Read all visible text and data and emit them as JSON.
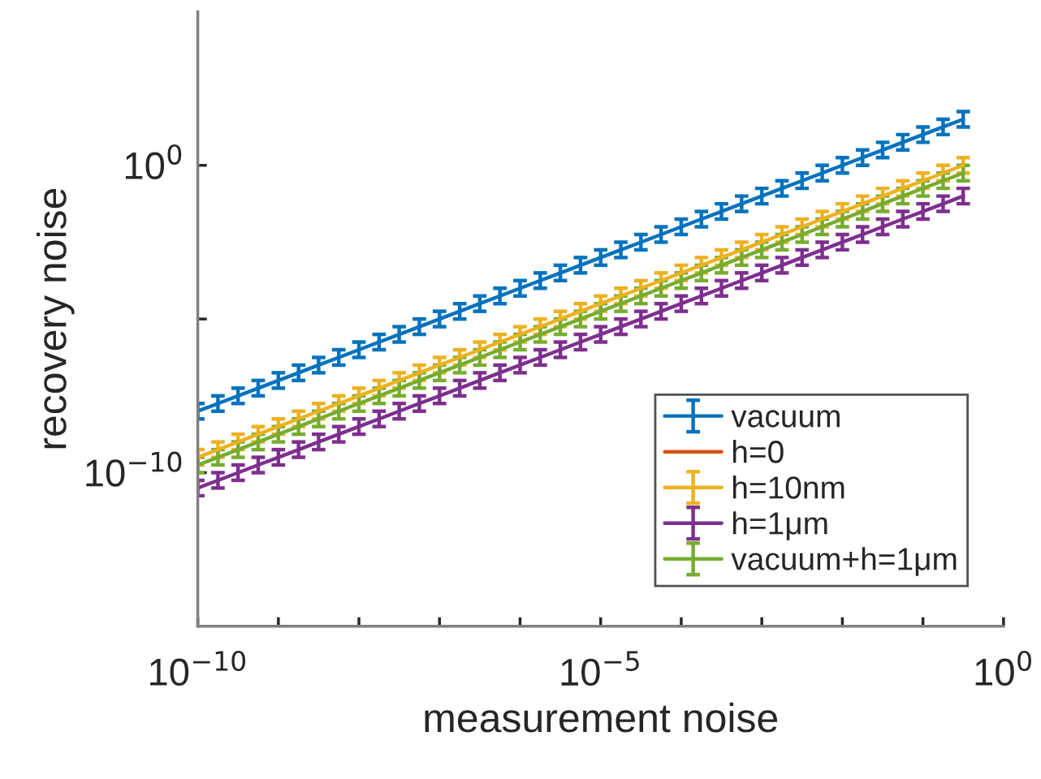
{
  "chart_data": {
    "type": "line",
    "xlabel": "measurement noise",
    "ylabel": "recovery noise",
    "log": "xy",
    "grid": false,
    "legend": "bottom right",
    "marker": "none",
    "line_style": "solid",
    "xlim": [
      1e-10,
      1
    ],
    "ylim": [
      1e-15,
      100000.0
    ],
    "xticks": [
      {
        "value": 1e-10,
        "label": "10$^{−10}$"
      },
      {
        "value": 1e-09,
        "label": null
      },
      {
        "value": 1e-08,
        "label": null
      },
      {
        "value": 1e-07,
        "label": null
      },
      {
        "value": 1e-06,
        "label": null
      },
      {
        "value": 1e-05,
        "label": "10$^{−5}$"
      },
      {
        "value": 0.0001,
        "label": null
      },
      {
        "value": 0.001,
        "label": null
      },
      {
        "value": 0.01,
        "label": null
      },
      {
        "value": 0.1,
        "label": null
      },
      {
        "value": 1,
        "label": "10$^{0}$"
      }
    ],
    "yticks": [
      {
        "value": 1e-10,
        "label": "10$^{−10}$"
      },
      {
        "value": 1e-05,
        "label": null
      },
      {
        "value": 1,
        "label": "10$^{0}$"
      }
    ],
    "x": [
      1e-10,
      1.78e-10,
      3.16e-10,
      5.62e-10,
      1e-09,
      1.78e-09,
      3.16e-09,
      5.62e-09,
      1e-08,
      1.78e-08,
      3.16e-08,
      5.62e-08,
      1e-07,
      1.78e-07,
      3.16e-07,
      5.62e-07,
      1e-06,
      1.78e-06,
      3.16e-06,
      5.62e-06,
      1e-05,
      1.78e-05,
      3.16e-05,
      5.62e-05,
      0.0001,
      0.000178,
      0.000316,
      0.000562,
      0.001,
      0.00178,
      0.00316,
      0.00562,
      0.01,
      0.0178,
      0.0316,
      0.0562,
      0.1,
      0.178,
      0.316
    ],
    "series": [
      {
        "name": "vacuum",
        "color": "#0072bd",
        "values": [
          1e-08,
          1.78e-08,
          3.16e-08,
          5.62e-08,
          1e-07,
          1.78e-07,
          3.16e-07,
          5.62e-07,
          1e-06,
          1.78e-06,
          3.16e-06,
          5.62e-06,
          1e-05,
          1.78e-05,
          3.16e-05,
          5.62e-05,
          0.0001,
          0.000178,
          0.000316,
          0.000562,
          0.001,
          0.00178,
          0.00316,
          0.00562,
          0.01,
          0.0178,
          0.0316,
          0.0562,
          0.1,
          0.178,
          0.316,
          0.562,
          1,
          1.78,
          3.16,
          5.62,
          10,
          17.8,
          31.6
        ],
        "errors": [
          [
            5.62e-09,
            1.78e-08
          ],
          [
            1e-08,
            3.16e-08
          ],
          [
            1.78e-08,
            5.62e-08
          ],
          [
            3.16e-08,
            1e-07
          ],
          [
            5.62e-08,
            1.78e-07
          ],
          [
            1e-07,
            3.16e-07
          ],
          [
            1.78e-07,
            5.62e-07
          ],
          [
            3.16e-07,
            1e-06
          ],
          [
            5.62e-07,
            1.78e-06
          ],
          [
            1e-06,
            3.16e-06
          ],
          [
            1.78e-06,
            5.62e-06
          ],
          [
            3.16e-06,
            1e-05
          ],
          [
            5.62e-06,
            1.78e-05
          ],
          [
            1e-05,
            3.16e-05
          ],
          [
            1.78e-05,
            5.62e-05
          ],
          [
            3.16e-05,
            0.0001
          ],
          [
            5.62e-05,
            0.000178
          ],
          [
            0.0001,
            0.000316
          ],
          [
            0.000178,
            0.000562
          ],
          [
            0.000316,
            0.001
          ],
          [
            0.000562,
            0.00178
          ],
          [
            0.001,
            0.00316
          ],
          [
            0.00178,
            0.00562
          ],
          [
            0.00316,
            0.01
          ],
          [
            0.00562,
            0.0178
          ],
          [
            0.01,
            0.0316
          ],
          [
            0.0178,
            0.0562
          ],
          [
            0.0316,
            0.1
          ],
          [
            0.0562,
            0.178
          ],
          [
            0.1,
            0.316
          ],
          [
            0.178,
            0.562
          ],
          [
            0.316,
            1
          ],
          [
            0.562,
            1.78
          ],
          [
            1,
            3.16
          ],
          [
            1.78,
            5.62
          ],
          [
            3.16,
            10
          ],
          [
            5.62,
            17.8
          ],
          [
            10,
            31.6
          ],
          [
            17.8,
            56.2
          ]
        ]
      },
      {
        "name": "h=0",
        "color": "#d95319",
        "values": [
          null,
          null,
          null,
          null,
          null,
          null,
          null,
          null,
          null,
          null,
          null,
          null,
          null,
          null,
          null,
          null,
          null,
          null,
          null,
          null,
          null,
          null,
          null,
          null,
          null,
          null,
          null,
          null,
          null,
          null,
          null,
          null,
          null,
          null,
          null,
          null,
          null,
          null,
          null
        ]
      },
      {
        "name": "h=10nm",
        "color": "#edb120",
        "values": [
          3.16e-10,
          5.62e-10,
          1e-09,
          1.78e-09,
          3.16e-09,
          5.62e-09,
          1e-08,
          1.78e-08,
          3.16e-08,
          5.62e-08,
          1e-07,
          1.78e-07,
          3.16e-07,
          5.62e-07,
          1e-06,
          1.78e-06,
          3.16e-06,
          5.62e-06,
          1e-05,
          1.78e-05,
          3.16e-05,
          5.62e-05,
          0.0001,
          0.000178,
          0.000316,
          0.000562,
          0.001,
          0.00178,
          0.00316,
          0.00562,
          0.01,
          0.0178,
          0.0316,
          0.0562,
          0.1,
          0.178,
          0.316,
          0.562,
          1
        ],
        "errors": [
          [
            1.78e-10,
            5.62e-10
          ],
          [
            3.16e-10,
            1e-09
          ],
          [
            5.62e-10,
            1.78e-09
          ],
          [
            1e-09,
            3.16e-09
          ],
          [
            1.78e-09,
            5.62e-09
          ],
          [
            3.16e-09,
            1e-08
          ],
          [
            5.62e-09,
            1.78e-08
          ],
          [
            1e-08,
            3.16e-08
          ],
          [
            1.78e-08,
            5.62e-08
          ],
          [
            3.16e-08,
            1e-07
          ],
          [
            5.62e-08,
            1.78e-07
          ],
          [
            1e-07,
            3.16e-07
          ],
          [
            1.78e-07,
            5.62e-07
          ],
          [
            3.16e-07,
            1e-06
          ],
          [
            5.62e-07,
            1.78e-06
          ],
          [
            1e-06,
            3.16e-06
          ],
          [
            1.78e-06,
            5.62e-06
          ],
          [
            3.16e-06,
            1e-05
          ],
          [
            5.62e-06,
            1.78e-05
          ],
          [
            1e-05,
            3.16e-05
          ],
          [
            1.78e-05,
            5.62e-05
          ],
          [
            3.16e-05,
            0.0001
          ],
          [
            5.62e-05,
            0.000178
          ],
          [
            0.0001,
            0.000316
          ],
          [
            0.000178,
            0.000562
          ],
          [
            0.000316,
            0.001
          ],
          [
            0.000562,
            0.00178
          ],
          [
            0.001,
            0.00316
          ],
          [
            0.00178,
            0.00562
          ],
          [
            0.00316,
            0.01
          ],
          [
            0.00562,
            0.0178
          ],
          [
            0.01,
            0.0316
          ],
          [
            0.0178,
            0.0562
          ],
          [
            0.0316,
            0.1
          ],
          [
            0.0562,
            0.178
          ],
          [
            0.1,
            0.316
          ],
          [
            0.178,
            0.562
          ],
          [
            0.316,
            1
          ],
          [
            0.562,
            1.78
          ]
        ]
      },
      {
        "name": "h=1μm",
        "color": "#7e2f8e",
        "values": [
          3.16e-11,
          5.62e-11,
          1e-10,
          1.78e-10,
          3.16e-10,
          5.62e-10,
          1e-09,
          1.78e-09,
          3.16e-09,
          5.62e-09,
          1e-08,
          1.78e-08,
          3.16e-08,
          5.62e-08,
          1e-07,
          1.78e-07,
          3.16e-07,
          5.62e-07,
          1e-06,
          1.78e-06,
          3.16e-06,
          5.62e-06,
          1e-05,
          1.78e-05,
          3.16e-05,
          5.62e-05,
          0.0001,
          0.000178,
          0.000316,
          0.000562,
          0.001,
          0.00178,
          0.00316,
          0.00562,
          0.01,
          0.0178,
          0.0316,
          0.0562,
          0.1
        ],
        "errors": [
          [
            1.78e-11,
            5.62e-11
          ],
          [
            3.16e-11,
            1e-10
          ],
          [
            5.62e-11,
            1.78e-10
          ],
          [
            1e-10,
            3.16e-10
          ],
          [
            1.78e-10,
            5.62e-10
          ],
          [
            3.16e-10,
            1e-09
          ],
          [
            5.62e-10,
            1.78e-09
          ],
          [
            1e-09,
            3.16e-09
          ],
          [
            1.78e-09,
            5.62e-09
          ],
          [
            3.16e-09,
            1e-08
          ],
          [
            5.62e-09,
            1.78e-08
          ],
          [
            1e-08,
            3.16e-08
          ],
          [
            1.78e-08,
            5.62e-08
          ],
          [
            3.16e-08,
            1e-07
          ],
          [
            5.62e-08,
            1.78e-07
          ],
          [
            1e-07,
            3.16e-07
          ],
          [
            1.78e-07,
            5.62e-07
          ],
          [
            3.16e-07,
            1e-06
          ],
          [
            5.62e-07,
            1.78e-06
          ],
          [
            1e-06,
            3.16e-06
          ],
          [
            1.78e-06,
            5.62e-06
          ],
          [
            3.16e-06,
            1e-05
          ],
          [
            5.62e-06,
            1.78e-05
          ],
          [
            1e-05,
            3.16e-05
          ],
          [
            1.78e-05,
            5.62e-05
          ],
          [
            3.16e-05,
            0.0001
          ],
          [
            5.62e-05,
            0.000178
          ],
          [
            0.0001,
            0.000316
          ],
          [
            0.000178,
            0.000562
          ],
          [
            0.000316,
            0.001
          ],
          [
            0.000562,
            0.00178
          ],
          [
            0.001,
            0.00316
          ],
          [
            0.00178,
            0.00562
          ],
          [
            0.00316,
            0.01
          ],
          [
            0.00562,
            0.0178
          ],
          [
            0.01,
            0.0316
          ],
          [
            0.0178,
            0.0562
          ],
          [
            0.0316,
            0.1
          ],
          [
            0.0562,
            0.178
          ]
        ]
      },
      {
        "name": "vacuum+h=1μm",
        "color": "#77ac30",
        "values": [
          1.78e-10,
          3.16e-10,
          5.62e-10,
          1e-09,
          1.78e-09,
          3.16e-09,
          5.62e-09,
          1e-08,
          1.78e-08,
          3.16e-08,
          5.62e-08,
          1e-07,
          1.78e-07,
          3.16e-07,
          5.62e-07,
          1e-06,
          1.78e-06,
          3.16e-06,
          5.62e-06,
          1e-05,
          1.78e-05,
          3.16e-05,
          5.62e-05,
          0.0001,
          0.000178,
          0.000316,
          0.000562,
          0.001,
          0.00178,
          0.00316,
          0.00562,
          0.01,
          0.0178,
          0.0316,
          0.0562,
          0.1,
          0.178,
          0.316,
          0.562
        ],
        "errors": [
          [
            1e-10,
            3.16e-10
          ],
          [
            1.78e-10,
            5.62e-10
          ],
          [
            3.16e-10,
            1e-09
          ],
          [
            5.62e-10,
            1.78e-09
          ],
          [
            1e-09,
            3.16e-09
          ],
          [
            1.78e-09,
            5.62e-09
          ],
          [
            3.16e-09,
            1e-08
          ],
          [
            5.62e-09,
            1.78e-08
          ],
          [
            1e-08,
            3.16e-08
          ],
          [
            1.78e-08,
            5.62e-08
          ],
          [
            3.16e-08,
            1e-07
          ],
          [
            5.62e-08,
            1.78e-07
          ],
          [
            1e-07,
            3.16e-07
          ],
          [
            1.78e-07,
            5.62e-07
          ],
          [
            3.16e-07,
            1e-06
          ],
          [
            5.62e-07,
            1.78e-06
          ],
          [
            1e-06,
            3.16e-06
          ],
          [
            1.78e-06,
            5.62e-06
          ],
          [
            3.16e-06,
            1e-05
          ],
          [
            5.62e-06,
            1.78e-05
          ],
          [
            1e-05,
            3.16e-05
          ],
          [
            1.78e-05,
            5.62e-05
          ],
          [
            3.16e-05,
            0.0001
          ],
          [
            5.62e-05,
            0.000178
          ],
          [
            0.0001,
            0.000316
          ],
          [
            0.000178,
            0.000562
          ],
          [
            0.000316,
            0.001
          ],
          [
            0.000562,
            0.00178
          ],
          [
            0.001,
            0.00316
          ],
          [
            0.00178,
            0.00562
          ],
          [
            0.00316,
            0.01
          ],
          [
            0.00562,
            0.0178
          ],
          [
            0.01,
            0.0316
          ],
          [
            0.0178,
            0.0562
          ],
          [
            0.0316,
            0.1
          ],
          [
            0.0562,
            0.178
          ],
          [
            0.1,
            0.316
          ],
          [
            0.178,
            0.562
          ],
          [
            0.316,
            1
          ]
        ]
      }
    ]
  }
}
